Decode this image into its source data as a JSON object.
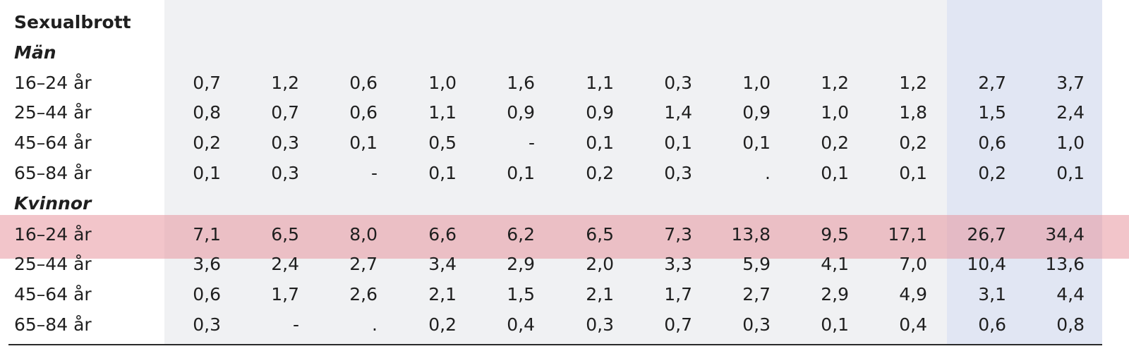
{
  "table": {
    "title": "Sexualbrott",
    "groups": [
      {
        "name": "Män",
        "rows": [
          {
            "label": "16–24 år",
            "values": [
              "0,7",
              "1,2",
              "0,6",
              "1,0",
              "1,6",
              "1,1",
              "0,3",
              "1,0",
              "1,2",
              "1,2",
              "2,7",
              "3,7"
            ]
          },
          {
            "label": "25–44 år",
            "values": [
              "0,8",
              "0,7",
              "0,6",
              "1,1",
              "0,9",
              "0,9",
              "1,4",
              "0,9",
              "1,0",
              "1,8",
              "1,5",
              "2,4"
            ]
          },
          {
            "label": "45–64 år",
            "values": [
              "0,2",
              "0,3",
              "0,1",
              "0,5",
              "-",
              "0,1",
              "0,1",
              "0,1",
              "0,2",
              "0,2",
              "0,6",
              "1,0"
            ]
          },
          {
            "label": "65–84 år",
            "values": [
              "0,1",
              "0,3",
              "-",
              "0,1",
              "0,1",
              "0,2",
              "0,3",
              ".",
              "0,1",
              "0,1",
              "0,2",
              "0,1"
            ]
          }
        ]
      },
      {
        "name": "Kvinnor",
        "rows": [
          {
            "label": "16–24 år",
            "values": [
              "7,1",
              "6,5",
              "8,0",
              "6,6",
              "6,2",
              "6,5",
              "7,3",
              "13,8",
              "9,5",
              "17,1",
              "26,7",
              "34,4"
            ]
          },
          {
            "label": "25–44 år",
            "values": [
              "3,6",
              "2,4",
              "2,7",
              "3,4",
              "2,9",
              "2,0",
              "3,3",
              "5,9",
              "4,1",
              "7,0",
              "10,4",
              "13,6"
            ]
          },
          {
            "label": "45–64 år",
            "values": [
              "0,6",
              "1,7",
              "2,6",
              "2,1",
              "1,5",
              "2,1",
              "1,7",
              "2,7",
              "2,9",
              "4,9",
              "3,1",
              "4,4"
            ]
          },
          {
            "label": "65–84 år",
            "values": [
              "0,3",
              "-",
              ".",
              "0,2",
              "0,4",
              "0,3",
              "0,7",
              "0,3",
              "0,1",
              "0,4",
              "0,6",
              "0,8"
            ]
          }
        ]
      }
    ]
  },
  "colors": {
    "grey_band": "#f0f1f3",
    "blue_band": "#e1e6f3",
    "highlight": "#e8969e"
  }
}
